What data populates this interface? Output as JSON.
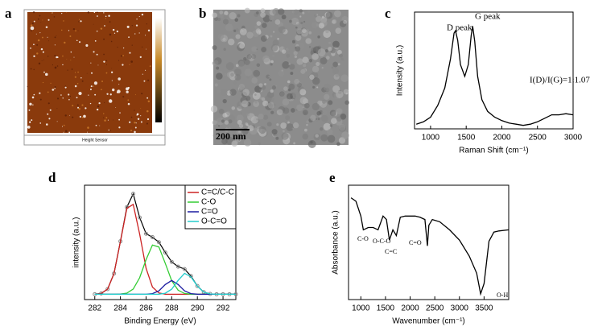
{
  "panels": {
    "a": {
      "label": "a",
      "caption": "Height Sensor"
    },
    "b": {
      "label": "b",
      "scale_bar": "200 nm"
    }
  },
  "chart_data": [
    {
      "type": "line",
      "label": "c",
      "x_label": "Raman Shift (cm⁻¹)",
      "y_label": "Intensity (a.u.)",
      "annotations": [
        "D peak",
        "G peak",
        "I(D)/I(G)=1:1.07"
      ],
      "x": [
        800,
        900,
        1000,
        1100,
        1200,
        1280,
        1330,
        1350,
        1380,
        1420,
        1480,
        1530,
        1570,
        1590,
        1620,
        1660,
        1720,
        1800,
        1900,
        2000,
        2100,
        2200,
        2300,
        2400,
        2500,
        2600,
        2700,
        2800,
        2900,
        3000
      ],
      "series": [
        {
          "color": "#000000",
          "values": [
            4,
            6,
            10,
            20,
            35,
            60,
            82,
            84,
            76,
            55,
            45,
            55,
            80,
            88,
            75,
            45,
            25,
            15,
            10,
            7,
            5,
            4,
            3,
            4,
            6,
            9,
            12,
            12,
            13,
            12
          ]
        }
      ],
      "xlim": [
        775,
        3000
      ],
      "ylim": [
        0,
        100
      ],
      "xticks": [
        1000,
        1500,
        2000,
        2500,
        3000
      ]
    },
    {
      "type": "line",
      "label": "d",
      "x_label": "Binding Energy (eV)",
      "y_label": "intensity (a.u.)",
      "x": [
        282,
        282.5,
        283,
        283.5,
        284,
        284.5,
        285,
        285.5,
        286,
        286.5,
        287,
        287.5,
        288,
        288.5,
        289,
        289.5,
        290,
        290.5,
        291,
        291.5,
        292,
        292.5,
        293
      ],
      "envelope": {
        "color": "#000000",
        "values": [
          5,
          5.8,
          9.9,
          24.6,
          55,
          87.3,
          99.9,
          77.5,
          62.2,
          58.9,
          54.2,
          44.4,
          35.6,
          31.1,
          28.8,
          22.2,
          12.8,
          7,
          5.3,
          5,
          5,
          5,
          5
        ]
      },
      "series": [
        {
          "name": "C=C/C-C",
          "color": "#cc2222",
          "values": [
            5,
            5.8,
            9.9,
            24.6,
            54.8,
            86.2,
            89.9,
            61.9,
            29.5,
            11.8,
            6.2,
            5.1,
            5,
            5,
            5,
            5,
            5,
            5,
            5,
            5,
            5,
            5,
            5
          ]
        },
        {
          "name": "C-O",
          "color": "#33cc33",
          "values": [
            5,
            5,
            5,
            5,
            5.2,
            6.1,
            10,
            20.6,
            37.7,
            51.5,
            49.7,
            34.1,
            17.8,
            8.8,
            5.8,
            5.1,
            5,
            5,
            5,
            5,
            5,
            5,
            5
          ]
        },
        {
          "name": "C=O",
          "color": "#1a1aa0",
          "values": [
            5,
            5,
            5,
            5,
            5,
            5,
            5,
            5,
            5,
            5.6,
            8.2,
            14.2,
            18,
            14.2,
            8.2,
            5.6,
            5.1,
            5,
            5,
            5,
            5,
            5,
            5
          ]
        },
        {
          "name": "O-C=O",
          "color": "#22cccc",
          "values": [
            5,
            5,
            5,
            5,
            5,
            5,
            5,
            5,
            5,
            5,
            5.1,
            6,
            9.8,
            18.1,
            24.8,
            21.5,
            12.7,
            7,
            5.3,
            5,
            5,
            5,
            5
          ]
        }
      ],
      "xlim": [
        281.2,
        293
      ],
      "ylim": [
        0,
        108
      ],
      "xticks": [
        282,
        284,
        286,
        288,
        290,
        292
      ],
      "legend": "upper right"
    },
    {
      "type": "line",
      "label": "e",
      "x_label": "Wavenumber (cm⁻¹)",
      "y_label": "Absorbance (a.u.)",
      "annotations": [
        "C-O",
        "O-C-O",
        "C=C",
        "C=O",
        "O-H"
      ],
      "x": [
        800,
        900,
        1000,
        1050,
        1150,
        1250,
        1350,
        1450,
        1520,
        1580,
        1650,
        1720,
        1800,
        1900,
        2000,
        2100,
        2200,
        2300,
        2350,
        2380,
        2450,
        2600,
        2800,
        3000,
        3200,
        3350,
        3430,
        3500,
        3600,
        3700,
        3800,
        4000
      ],
      "series": [
        {
          "color": "#000000",
          "values": [
            89,
            86,
            73,
            61,
            63,
            63,
            61,
            73,
            70,
            52,
            61,
            56,
            72,
            73,
            73,
            73,
            72,
            70,
            47,
            65,
            70,
            68,
            61,
            52,
            38,
            23,
            5,
            14,
            51,
            59,
            60,
            61
          ]
        }
      ],
      "xlim": [
        750,
        4000
      ],
      "ylim": [
        0,
        100
      ],
      "xticks": [
        1000,
        1500,
        2000,
        2500,
        3000,
        3500
      ]
    }
  ]
}
